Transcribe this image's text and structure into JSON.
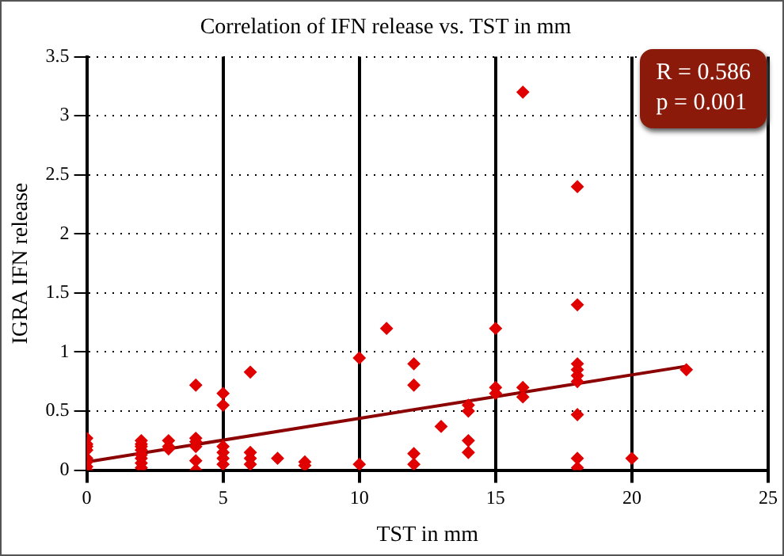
{
  "chart_data": {
    "type": "scatter",
    "title": "Correlation of IFN release vs. TST in mm",
    "xlabel": "TST in mm",
    "ylabel": "IGRA IFN release",
    "xlim": [
      0,
      25
    ],
    "xticks": [
      0,
      5,
      10,
      15,
      20,
      25
    ],
    "ylim": [
      0,
      3.5
    ],
    "yticks": [
      0,
      0.5,
      1,
      1.5,
      2,
      2.5,
      3,
      3.5
    ],
    "grid": true,
    "series": [
      {
        "marker": "diamond",
        "color": "#e00000",
        "x": [
          0,
          0,
          0,
          0,
          0,
          0,
          0,
          0,
          2,
          2,
          2,
          2,
          2,
          2,
          2,
          2,
          3,
          3,
          3,
          4,
          4,
          4,
          4,
          4,
          4,
          5,
          5,
          5,
          5,
          5,
          5,
          6,
          6,
          6,
          6,
          7,
          8,
          8,
          10,
          10,
          11,
          12,
          12,
          12,
          12,
          13,
          14,
          14,
          14,
          14,
          15,
          15,
          15,
          16,
          16,
          16,
          18,
          18,
          18,
          18,
          18,
          18,
          18,
          18,
          18,
          20,
          22
        ],
        "values": [
          0.27,
          0.22,
          0.2,
          0.17,
          0.1,
          0.07,
          0.03,
          0.0,
          0.25,
          0.22,
          0.2,
          0.17,
          0.13,
          0.1,
          0.06,
          0.02,
          0.25,
          0.2,
          0.18,
          0.72,
          0.27,
          0.24,
          0.2,
          0.08,
          0.0,
          0.65,
          0.55,
          0.2,
          0.15,
          0.1,
          0.05,
          0.83,
          0.15,
          0.1,
          0.05,
          0.1,
          0.07,
          0.04,
          0.95,
          0.05,
          1.2,
          0.9,
          0.72,
          0.14,
          0.05,
          0.37,
          0.55,
          0.5,
          0.25,
          0.15,
          1.2,
          0.7,
          0.65,
          3.2,
          0.7,
          0.62,
          2.4,
          1.4,
          0.9,
          0.85,
          0.8,
          0.75,
          0.47,
          0.1,
          0.02,
          0.1,
          0.85
        ]
      },
      {
        "type": "line",
        "marker": "none",
        "color": "#8b0000",
        "x": [
          0,
          22
        ],
        "values": [
          0.07,
          0.88
        ]
      }
    ],
    "annotations": [
      "R = 0.586",
      "p = 0.001"
    ]
  }
}
